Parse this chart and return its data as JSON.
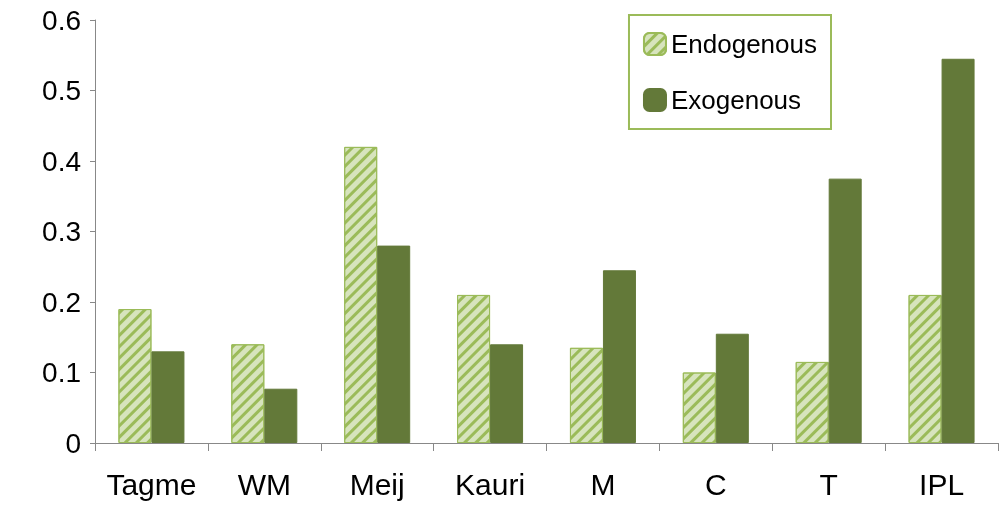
{
  "chart_data": {
    "type": "bar",
    "categories": [
      "Tagme",
      "WM",
      "Meij",
      "Kauri",
      "M",
      "C",
      "T",
      "IPL"
    ],
    "series": [
      {
        "name": "Endogenous",
        "color": "#d7e4bd",
        "values": [
          0.19,
          0.14,
          0.42,
          0.21,
          0.135,
          0.1,
          0.115,
          0.21
        ]
      },
      {
        "name": "Exogenous",
        "color": "#637939",
        "values": [
          0.13,
          0.077,
          0.28,
          0.14,
          0.245,
          0.155,
          0.375,
          0.545
        ]
      }
    ],
    "ylim": [
      0,
      0.6
    ],
    "yticks": [
      0,
      0.1,
      0.2,
      0.3,
      0.4,
      0.5,
      0.6
    ],
    "grid": false,
    "legend": "top right"
  }
}
